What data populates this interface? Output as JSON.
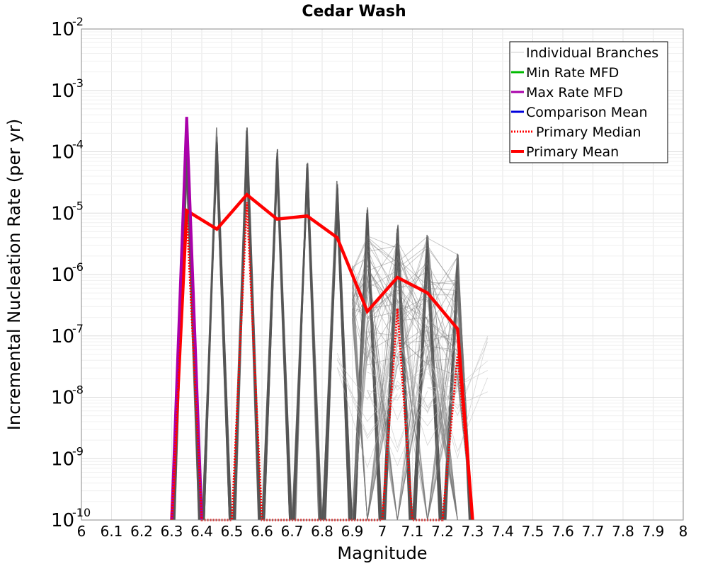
{
  "chart_data": {
    "type": "line",
    "title": "Cedar Wash",
    "xlabel": "Magnitude",
    "ylabel": "Incremental Nucleation Rate (per yr)",
    "xlim": [
      6.0,
      8.0
    ],
    "ylim": [
      1e-10,
      0.01
    ],
    "yscale": "log",
    "grid": true,
    "legend_position": "top-right",
    "x_ticks": [
      "6",
      "6.1",
      "6.2",
      "6.3",
      "6.4",
      "6.5",
      "6.6",
      "6.7",
      "6.8",
      "6.9",
      "7",
      "7.1",
      "7.2",
      "7.3",
      "7.4",
      "7.5",
      "7.6",
      "7.7",
      "7.8",
      "7.9",
      "8"
    ],
    "y_ticks": [
      {
        "base": "10",
        "exp": "-10"
      },
      {
        "base": "10",
        "exp": "-9"
      },
      {
        "base": "10",
        "exp": "-8"
      },
      {
        "base": "10",
        "exp": "-7"
      },
      {
        "base": "10",
        "exp": "-6"
      },
      {
        "base": "10",
        "exp": "-5"
      },
      {
        "base": "10",
        "exp": "-4"
      },
      {
        "base": "10",
        "exp": "-3"
      },
      {
        "base": "10",
        "exp": "-2"
      }
    ],
    "legend": [
      {
        "name": "Individual Branches",
        "color": "#cccccc",
        "style": "solid"
      },
      {
        "name": "Min Rate MFD",
        "color": "#00bb00",
        "style": "solid"
      },
      {
        "name": "Max Rate MFD",
        "color": "#aa00aa",
        "style": "solid"
      },
      {
        "name": "Comparison Mean",
        "color": "#0000dd",
        "style": "solid"
      },
      {
        "name": "Primary Median",
        "color": "#ff0000",
        "style": "dotted"
      },
      {
        "name": "Primary Mean",
        "color": "#ff0000",
        "style": "solid"
      }
    ],
    "series": [
      {
        "name": "Primary Mean",
        "color": "#ff0000",
        "x": [
          6.3,
          6.35,
          6.45,
          6.55,
          6.65,
          6.75,
          6.85,
          6.95,
          7.05,
          7.15,
          7.25,
          7.3
        ],
        "y": [
          1e-10,
          1.1e-05,
          5.5e-06,
          2e-05,
          8e-06,
          9e-06,
          4e-06,
          2.5e-07,
          9e-07,
          5e-07,
          1.3e-07,
          1e-10
        ]
      },
      {
        "name": "Max Rate MFD",
        "color": "#aa00aa",
        "x": [
          6.3,
          6.35,
          6.4
        ],
        "y": [
          1e-10,
          0.00037,
          1e-10
        ]
      },
      {
        "name": "Primary Median",
        "color": "#ff0000",
        "x": [
          6.3,
          6.35,
          6.4,
          6.5,
          6.55,
          6.6,
          7.0,
          7.05,
          7.1,
          7.2,
          7.25,
          7.3
        ],
        "y": [
          1e-10,
          1e-05,
          1e-10,
          1e-10,
          1.5e-05,
          1e-10,
          1e-10,
          2.8e-07,
          1e-10,
          1e-10,
          5e-08,
          1e-10
        ]
      }
    ],
    "branch_peaks": [
      {
        "center": 6.35,
        "max": 0.0002
      },
      {
        "center": 6.45,
        "max": 0.00025
      },
      {
        "center": 6.55,
        "max": 0.00025
      },
      {
        "center": 6.65,
        "max": 0.00013
      },
      {
        "center": 6.75,
        "max": 9e-05
      },
      {
        "center": 6.85,
        "max": 4.4e-05
      },
      {
        "center": 6.95,
        "max": 1.3e-05
      },
      {
        "center": 7.05,
        "max": 6.5e-06
      },
      {
        "center": 7.15,
        "max": 4.5e-06
      },
      {
        "center": 7.25,
        "max": 2.2e-06
      }
    ],
    "branch_color": "#555555"
  }
}
